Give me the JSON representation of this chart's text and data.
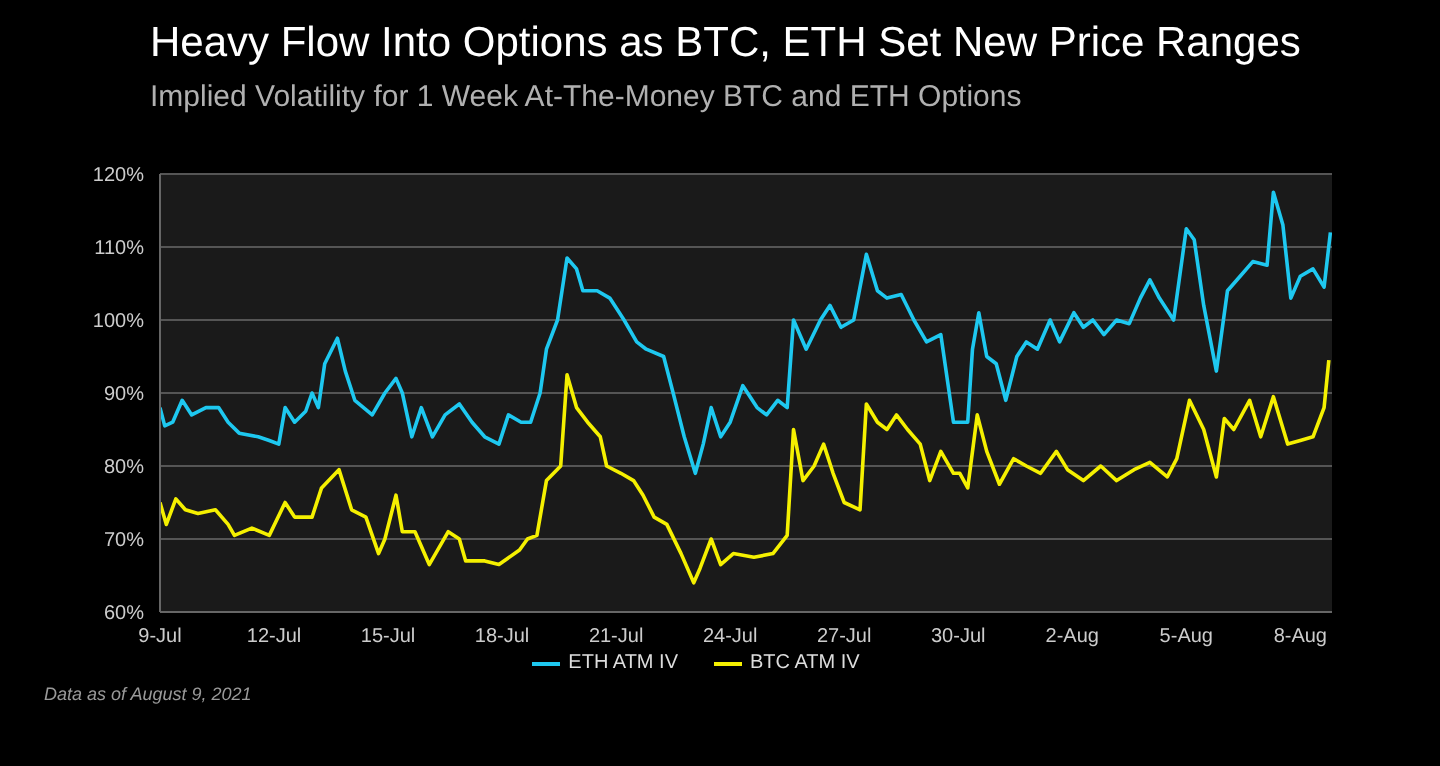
{
  "chart_data": {
    "type": "line",
    "title": "Heavy Flow Into Options as BTC, ETH Set New Price Ranges",
    "subtitle": "Implied Volatility for 1 Week At-The-Money BTC and ETH Options",
    "annotations": [
      "Data as of August 9, 2021"
    ],
    "xlim": [
      "2021-07-09T00:00",
      "2021-08-08T20:00"
    ],
    "xticks": [
      {
        "value": "2021-07-09",
        "label": "9-Jul"
      },
      {
        "value": "2021-07-12",
        "label": "12-Jul"
      },
      {
        "value": "2021-07-15",
        "label": "15-Jul"
      },
      {
        "value": "2021-07-18",
        "label": "18-Jul"
      },
      {
        "value": "2021-07-21",
        "label": "21-Jul"
      },
      {
        "value": "2021-07-24",
        "label": "24-Jul"
      },
      {
        "value": "2021-07-27",
        "label": "27-Jul"
      },
      {
        "value": "2021-07-30",
        "label": "30-Jul"
      },
      {
        "value": "2021-08-02",
        "label": "2-Aug"
      },
      {
        "value": "2021-08-05",
        "label": "5-Aug"
      },
      {
        "value": "2021-08-08",
        "label": "8-Aug"
      }
    ],
    "ylim": [
      60,
      120
    ],
    "yticks": [
      {
        "value": 60,
        "label": "60%"
      },
      {
        "value": 70,
        "label": "70%"
      },
      {
        "value": 80,
        "label": "80%"
      },
      {
        "value": 90,
        "label": "90%"
      },
      {
        "value": 100,
        "label": "100%"
      },
      {
        "value": 110,
        "label": "110%"
      },
      {
        "value": 120,
        "label": "120%"
      }
    ],
    "grid": "y",
    "legend": "bottom",
    "marker": "none",
    "line_style": "solid",
    "series": [
      {
        "name": "ETH ATM IV",
        "color": "#1ec8f0",
        "x": [
          "2021-07-09T00:00",
          "2021-07-09T03:00",
          "2021-07-09T08:00",
          "2021-07-09T14:00",
          "2021-07-09T20:00",
          "2021-07-10T05:00",
          "2021-07-10T13:00",
          "2021-07-10T19:00",
          "2021-07-11T02:00",
          "2021-07-11T14:00",
          "2021-07-11T21:00",
          "2021-07-12T03:00",
          "2021-07-12T07:00",
          "2021-07-12T13:00",
          "2021-07-12T20:00",
          "2021-07-13T00:00",
          "2021-07-13T04:00",
          "2021-07-13T08:00",
          "2021-07-13T16:00",
          "2021-07-13T21:00",
          "2021-07-14T03:00",
          "2021-07-14T14:00",
          "2021-07-14T22:00",
          "2021-07-15T05:00",
          "2021-07-15T09:00",
          "2021-07-15T15:00",
          "2021-07-15T21:00",
          "2021-07-16T04:00",
          "2021-07-16T12:00",
          "2021-07-16T21:00",
          "2021-07-17T05:00",
          "2021-07-17T13:00",
          "2021-07-17T22:00",
          "2021-07-18T04:00",
          "2021-07-18T12:00",
          "2021-07-18T18:00",
          "2021-07-19T00:00",
          "2021-07-19T04:00",
          "2021-07-19T11:00",
          "2021-07-19T17:00",
          "2021-07-19T23:00",
          "2021-07-20T03:00",
          "2021-07-20T12:00",
          "2021-07-20T20:00",
          "2021-07-21T05:00",
          "2021-07-21T13:00",
          "2021-07-21T19:00",
          "2021-07-22T06:00",
          "2021-07-22T12:00",
          "2021-07-22T19:00",
          "2021-07-23T02:00",
          "2021-07-23T07:00",
          "2021-07-23T12:00",
          "2021-07-23T18:00",
          "2021-07-24T00:00",
          "2021-07-24T08:00",
          "2021-07-24T17:00",
          "2021-07-24T23:00",
          "2021-07-25T06:00",
          "2021-07-25T12:00",
          "2021-07-25T16:00",
          "2021-07-26T00:00",
          "2021-07-26T09:00",
          "2021-07-26T15:00",
          "2021-07-26T22:00",
          "2021-07-27T06:00",
          "2021-07-27T14:00",
          "2021-07-27T21:00",
          "2021-07-28T03:00",
          "2021-07-28T12:00",
          "2021-07-28T20:00",
          "2021-07-29T04:00",
          "2021-07-29T13:00",
          "2021-07-29T21:00",
          "2021-07-30T06:00",
          "2021-07-30T09:00",
          "2021-07-30T13:00",
          "2021-07-30T18:00",
          "2021-07-31T00:00",
          "2021-07-31T06:00",
          "2021-07-31T13:00",
          "2021-07-31T19:00",
          "2021-08-01T02:00",
          "2021-08-01T10:00",
          "2021-08-01T16:00",
          "2021-08-02T01:00",
          "2021-08-02T07:00",
          "2021-08-02T13:00",
          "2021-08-02T20:00",
          "2021-08-03T04:00",
          "2021-08-03T12:00",
          "2021-08-03T19:00",
          "2021-08-04T01:00",
          "2021-08-04T07:00",
          "2021-08-04T16:00",
          "2021-08-05T00:00",
          "2021-08-05T05:00",
          "2021-08-05T11:00",
          "2021-08-05T19:00",
          "2021-08-06T02:00",
          "2021-08-06T10:00",
          "2021-08-06T18:00",
          "2021-08-07T03:00",
          "2021-08-07T07:00",
          "2021-08-07T13:00",
          "2021-08-07T18:00",
          "2021-08-08T00:00",
          "2021-08-08T08:00",
          "2021-08-08T15:00",
          "2021-08-08T19:00"
        ],
        "values": [
          88,
          85.5,
          86,
          89,
          87,
          88,
          88,
          86,
          84.5,
          84,
          83.5,
          83,
          88,
          86,
          87.5,
          90,
          88,
          94,
          97.5,
          93,
          89,
          87,
          90,
          92,
          90,
          84,
          88,
          84,
          87,
          88.5,
          86,
          84,
          83,
          87,
          86,
          86,
          90,
          96,
          100,
          108.5,
          107,
          104,
          104,
          103,
          100,
          97,
          96,
          95,
          90,
          84,
          79,
          83,
          88,
          84,
          86,
          91,
          88,
          87,
          89,
          88,
          100,
          96,
          100,
          102,
          99,
          100,
          109,
          104,
          103,
          103.5,
          100,
          97,
          98,
          86,
          86,
          96,
          101,
          95,
          94,
          89,
          95,
          97,
          96,
          100,
          97,
          101,
          99,
          100,
          98,
          100,
          99.5,
          103,
          105.5,
          103,
          100,
          112.5,
          111,
          102,
          93,
          104,
          106,
          108,
          107.5,
          117.5,
          113,
          103,
          106,
          107,
          104.5,
          112
        ]
      },
      {
        "name": "BTC ATM IV",
        "color": "#f5f000",
        "x": [
          "2021-07-09T00:00",
          "2021-07-09T04:00",
          "2021-07-09T10:00",
          "2021-07-09T16:00",
          "2021-07-10T00:00",
          "2021-07-10T11:00",
          "2021-07-10T19:00",
          "2021-07-10T23:00",
          "2021-07-11T10:00",
          "2021-07-11T21:00",
          "2021-07-12T07:00",
          "2021-07-12T13:00",
          "2021-07-13T00:00",
          "2021-07-13T06:00",
          "2021-07-13T17:00",
          "2021-07-14T01:00",
          "2021-07-14T10:00",
          "2021-07-14T18:00",
          "2021-07-14T22:00",
          "2021-07-15T05:00",
          "2021-07-15T09:00",
          "2021-07-15T17:00",
          "2021-07-16T02:00",
          "2021-07-16T06:00",
          "2021-07-16T14:00",
          "2021-07-16T21:00",
          "2021-07-17T01:00",
          "2021-07-17T13:00",
          "2021-07-17T22:00",
          "2021-07-18T11:00",
          "2021-07-18T16:00",
          "2021-07-18T22:00",
          "2021-07-19T04:00",
          "2021-07-19T13:00",
          "2021-07-19T17:00",
          "2021-07-19T23:00",
          "2021-07-20T06:00",
          "2021-07-20T14:00",
          "2021-07-20T18:00",
          "2021-07-21T03:00",
          "2021-07-21T11:00",
          "2021-07-21T17:00",
          "2021-07-22T00:00",
          "2021-07-22T08:00",
          "2021-07-22T17:00",
          "2021-07-23T01:00",
          "2021-07-23T05:00",
          "2021-07-23T12:00",
          "2021-07-23T18:00",
          "2021-07-24T02:00",
          "2021-07-24T15:00",
          "2021-07-25T03:00",
          "2021-07-25T12:00",
          "2021-07-25T16:00",
          "2021-07-25T22:00",
          "2021-07-26T05:00",
          "2021-07-26T11:00",
          "2021-07-26T17:00",
          "2021-07-27T00:00",
          "2021-07-27T10:00",
          "2021-07-27T14:00",
          "2021-07-27T21:00",
          "2021-07-28T03:00",
          "2021-07-28T09:00",
          "2021-07-28T16:00",
          "2021-07-29T00:00",
          "2021-07-29T06:00",
          "2021-07-29T13:00",
          "2021-07-29T21:00",
          "2021-07-30T01:00",
          "2021-07-30T06:00",
          "2021-07-30T12:00",
          "2021-07-30T18:00",
          "2021-07-31T02:00",
          "2021-07-31T11:00",
          "2021-07-31T19:00",
          "2021-08-01T04:00",
          "2021-08-01T14:00",
          "2021-08-01T21:00",
          "2021-08-02T07:00",
          "2021-08-02T18:00",
          "2021-08-03T04:00",
          "2021-08-03T15:00",
          "2021-08-04T01:00",
          "2021-08-04T12:00",
          "2021-08-04T18:00",
          "2021-08-05T02:00",
          "2021-08-05T11:00",
          "2021-08-05T19:00",
          "2021-08-06T00:00",
          "2021-08-06T06:00",
          "2021-08-06T16:00",
          "2021-08-06T23:00",
          "2021-08-07T07:00",
          "2021-08-07T16:00",
          "2021-08-08T00:00",
          "2021-08-08T08:00",
          "2021-08-08T15:00",
          "2021-08-08T18:00"
        ],
        "values": [
          75,
          72,
          75.5,
          74,
          73.5,
          74,
          72,
          70.5,
          71.5,
          70.5,
          75,
          73,
          73,
          77,
          79.5,
          74,
          73,
          68,
          70,
          76,
          71,
          71,
          66.5,
          68,
          71,
          70,
          67,
          67,
          66.5,
          68.5,
          70,
          70.5,
          78,
          80,
          92.5,
          88,
          86,
          84,
          80,
          79,
          78,
          76,
          73,
          72,
          68,
          64,
          66,
          70,
          66.5,
          68,
          67.5,
          68,
          70.5,
          85,
          78,
          80,
          83,
          79,
          75,
          74,
          88.5,
          86,
          85,
          87,
          85,
          83,
          78,
          82,
          79,
          79,
          77,
          87,
          82,
          77.5,
          81,
          80,
          79,
          82,
          79.5,
          78,
          80,
          78,
          79.5,
          80.5,
          78.5,
          81,
          89,
          85,
          78.5,
          86.5,
          85,
          89,
          84,
          89.5,
          83,
          83.5,
          84,
          88,
          94.5
        ]
      }
    ]
  }
}
